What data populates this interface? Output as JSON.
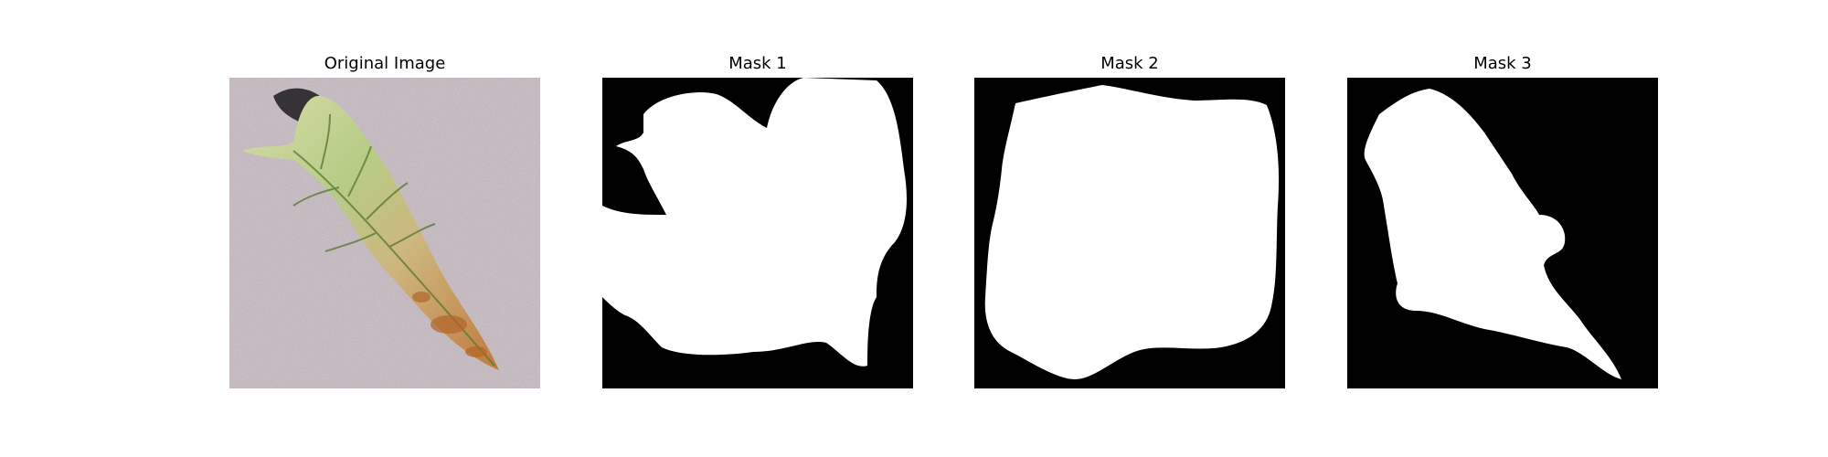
{
  "panels": [
    {
      "title": "Original Image",
      "content": "photo of a diseased leaf on a grey background"
    },
    {
      "title": "Mask 1",
      "content": "binary segmentation mask"
    },
    {
      "title": "Mask 2",
      "content": "binary segmentation mask"
    },
    {
      "title": "Mask 3",
      "content": "binary segmentation mask"
    }
  ],
  "colors": {
    "background": "#ffffff",
    "mask_background": "#000000",
    "mask_foreground": "#ffffff",
    "photo_background": "#b9adb4",
    "leaf_green": "#b7c98a",
    "leaf_brown": "#c27a3a"
  }
}
